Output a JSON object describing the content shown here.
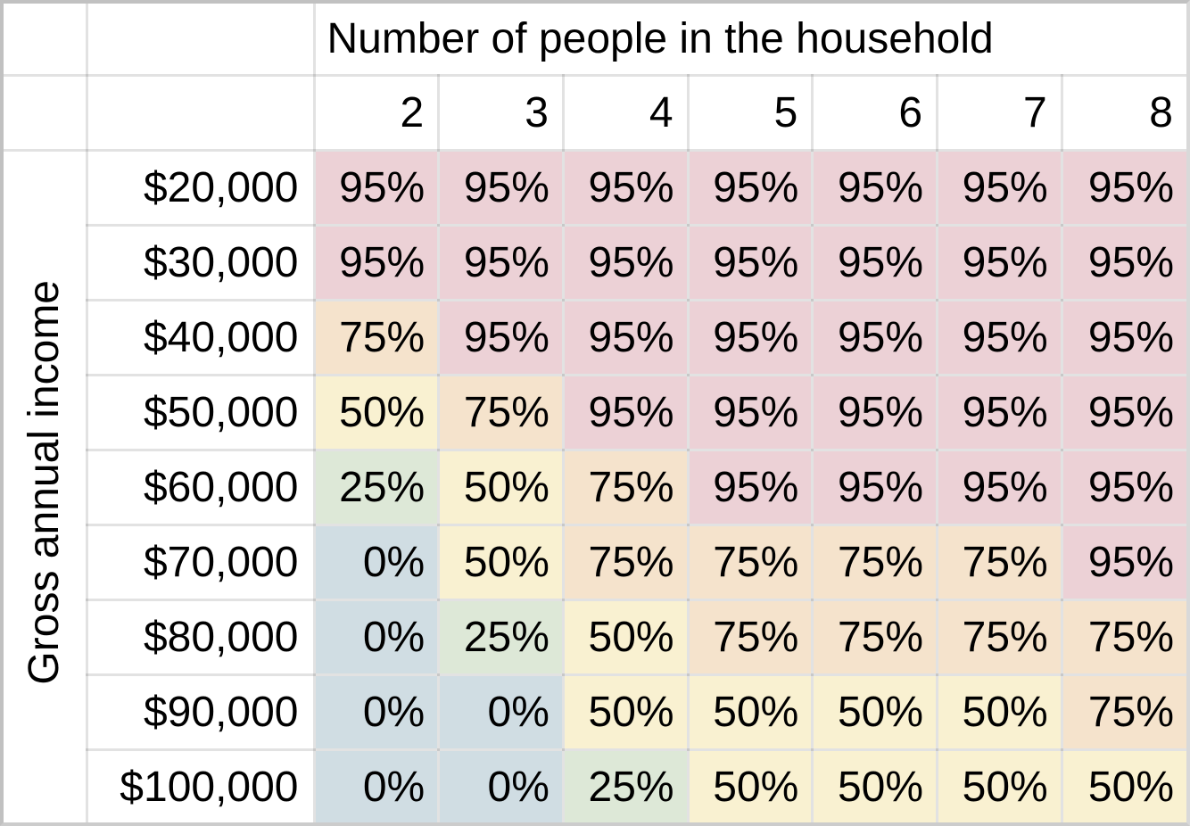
{
  "table": {
    "col_header_title": "Number of people in the household",
    "row_header_title": "Gross annual income",
    "columns": [
      "2",
      "3",
      "4",
      "5",
      "6",
      "7",
      "8"
    ],
    "rows": [
      {
        "income": "$20,000",
        "values": [
          "95%",
          "95%",
          "95%",
          "95%",
          "95%",
          "95%",
          "95%"
        ]
      },
      {
        "income": "$30,000",
        "values": [
          "95%",
          "95%",
          "95%",
          "95%",
          "95%",
          "95%",
          "95%"
        ]
      },
      {
        "income": "$40,000",
        "values": [
          "75%",
          "95%",
          "95%",
          "95%",
          "95%",
          "95%",
          "95%"
        ]
      },
      {
        "income": "$50,000",
        "values": [
          "50%",
          "75%",
          "95%",
          "95%",
          "95%",
          "95%",
          "95%"
        ]
      },
      {
        "income": "$60,000",
        "values": [
          "25%",
          "50%",
          "75%",
          "95%",
          "95%",
          "95%",
          "95%"
        ]
      },
      {
        "income": "$70,000",
        "values": [
          "0%",
          "50%",
          "75%",
          "75%",
          "75%",
          "75%",
          "95%"
        ]
      },
      {
        "income": "$80,000",
        "values": [
          "0%",
          "25%",
          "50%",
          "75%",
          "75%",
          "75%",
          "75%"
        ]
      },
      {
        "income": "$90,000",
        "values": [
          "0%",
          "0%",
          "50%",
          "50%",
          "50%",
          "50%",
          "75%"
        ]
      },
      {
        "income": "$100,000",
        "values": [
          "0%",
          "0%",
          "25%",
          "50%",
          "50%",
          "50%",
          "50%"
        ]
      }
    ]
  },
  "colors": {
    "95%": "#ecd1d6",
    "75%": "#f5e3cc",
    "50%": "#f9f1d1",
    "25%": "#dde8d7",
    "0%": "#d0dde3",
    "background": "#ffffff",
    "gridline": "#e2e2e2",
    "outer_frame": "#c1c1c1"
  },
  "chart_data": {
    "type": "heatmap",
    "title": "Number of people in the household",
    "xlabel": "Number of people in the household",
    "ylabel": "Gross annual income",
    "x": [
      2,
      3,
      4,
      5,
      6,
      7,
      8
    ],
    "y": [
      "$20,000",
      "$30,000",
      "$40,000",
      "$50,000",
      "$60,000",
      "$70,000",
      "$80,000",
      "$90,000",
      "$100,000"
    ],
    "values_percent": [
      [
        95,
        95,
        95,
        95,
        95,
        95,
        95
      ],
      [
        95,
        95,
        95,
        95,
        95,
        95,
        95
      ],
      [
        75,
        95,
        95,
        95,
        95,
        95,
        95
      ],
      [
        50,
        75,
        95,
        95,
        95,
        95,
        95
      ],
      [
        25,
        50,
        75,
        95,
        95,
        95,
        95
      ],
      [
        0,
        50,
        75,
        75,
        75,
        75,
        95
      ],
      [
        0,
        25,
        50,
        75,
        75,
        75,
        75
      ],
      [
        0,
        0,
        50,
        50,
        50,
        50,
        75
      ],
      [
        0,
        0,
        25,
        50,
        50,
        50,
        50
      ]
    ],
    "value_color_map": {
      "95": "#ecd1d6",
      "75": "#f5e3cc",
      "50": "#f9f1d1",
      "25": "#dde8d7",
      "0": "#d0dde3"
    },
    "grid": true,
    "legend_position": "none"
  }
}
